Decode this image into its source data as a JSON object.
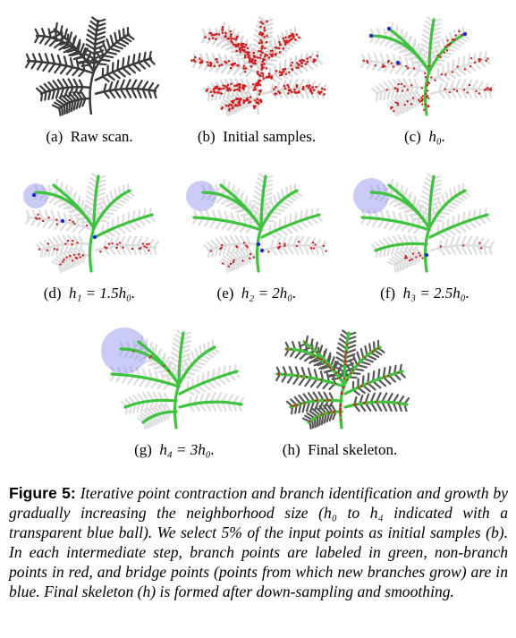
{
  "panels": [
    {
      "id": "a",
      "tag": "(a)",
      "text": "Raw scan.",
      "math": "",
      "style": "raw"
    },
    {
      "id": "b",
      "tag": "(b)",
      "text": "Initial samples.",
      "math": "",
      "style": "samples"
    },
    {
      "id": "c",
      "tag": "(c)",
      "text": "",
      "math": "h₀.",
      "style": "h0"
    },
    {
      "id": "d",
      "tag": "(d)",
      "text": "",
      "math": "h₁ = 1.5h₀.",
      "style": "h1"
    },
    {
      "id": "e",
      "tag": "(e)",
      "text": "",
      "math": "h₂ = 2h₀.",
      "style": "h2"
    },
    {
      "id": "f",
      "tag": "(f)",
      "text": "",
      "math": "h₃ = 2.5h₀.",
      "style": "h3"
    },
    {
      "id": "g",
      "tag": "(g)",
      "text": "",
      "math": "h₄ = 3h₀.",
      "style": "h4"
    },
    {
      "id": "h",
      "tag": "(h)",
      "text": "Final skeleton.",
      "math": "",
      "style": "final"
    }
  ],
  "figure_caption": {
    "label": "Figure 5:",
    "body": "Iterative point contraction and branch identification and growth by gradually increasing the neighborhood size (h₀ to h₄ indicated with a transparent blue ball). We select 5% of the input points as initial samples (b). In each intermediate step, branch points are labeled in green, non-branch points in red, and bridge points (points from which new branches grow) are in blue. Final skeleton (h) is formed after down-sampling and smoothing."
  },
  "colors": {
    "raw_scan": "#3a3a3a",
    "faded_scan": "#bdbdbd",
    "branch_points": "#3cc43c",
    "non_branch_points": "#d41c1c",
    "bridge_points": "#1a2bd8",
    "neighborhood_ball": "#8c8cf0"
  }
}
